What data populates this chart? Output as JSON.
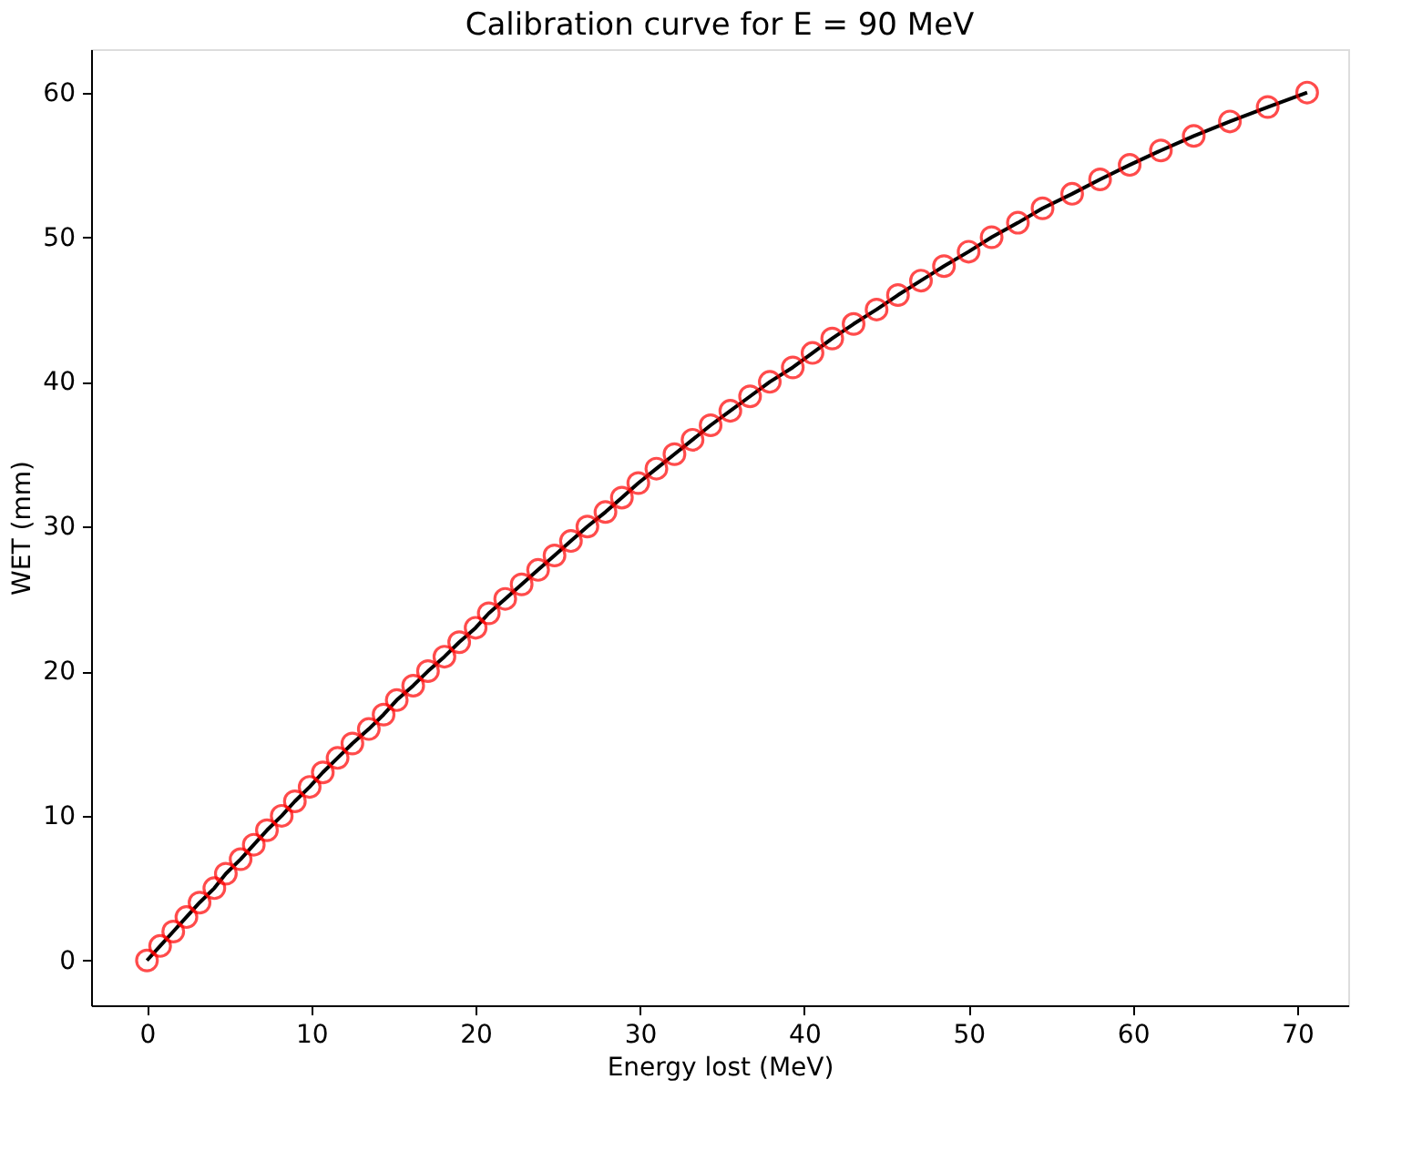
{
  "chart_data": {
    "type": "line",
    "title": "Calibration curve for E = 90 MeV",
    "xlabel": "Energy lost (MeV)",
    "ylabel": "WET (mm)",
    "x": [
      0,
      0.8,
      1.6,
      2.4,
      3.2,
      4.1,
      4.8,
      5.7,
      6.5,
      7.3,
      8.2,
      9.0,
      9.9,
      10.7,
      11.6,
      12.5,
      13.5,
      14.4,
      15.2,
      16.2,
      17.1,
      18.1,
      19.0,
      20.0,
      20.8,
      21.8,
      22.8,
      23.8,
      24.8,
      25.8,
      26.8,
      27.9,
      28.9,
      29.9,
      31.0,
      32.1,
      33.2,
      34.3,
      35.5,
      36.7,
      37.9,
      39.3,
      40.5,
      41.7,
      43.0,
      44.4,
      45.7,
      47.1,
      48.5,
      50.0,
      51.4,
      53.0,
      54.5,
      56.3,
      58.0,
      59.8,
      61.7,
      63.7,
      65.9,
      68.2,
      70.6
    ],
    "series": [
      {
        "color": "#000000",
        "marker": "none",
        "line_style": "solid",
        "values": [
          0,
          1,
          2,
          3,
          4,
          5,
          6,
          7,
          8,
          9,
          10,
          11,
          12,
          13,
          14,
          15,
          16,
          17,
          18,
          19,
          20,
          21,
          22,
          23,
          24,
          25,
          26,
          27,
          28,
          29,
          30,
          31,
          32,
          33,
          34,
          35,
          36,
          37,
          38,
          39,
          40,
          41,
          42,
          43,
          44,
          45,
          46,
          47,
          48,
          49,
          50,
          51,
          52,
          53,
          54,
          55,
          56,
          57,
          58,
          59,
          60
        ]
      },
      {
        "type": "scatter",
        "color": "#ff0000",
        "marker": "circle",
        "values": [
          0,
          1,
          2,
          3,
          4,
          5,
          6,
          7,
          8,
          9,
          10,
          11,
          12,
          13,
          14,
          15,
          16,
          17,
          18,
          19,
          20,
          21,
          22,
          23,
          24,
          25,
          26,
          27,
          28,
          29,
          30,
          31,
          32,
          33,
          34,
          35,
          36,
          37,
          38,
          39,
          40,
          41,
          42,
          43,
          44,
          45,
          46,
          47,
          48,
          49,
          50,
          51,
          52,
          53,
          54,
          55,
          56,
          57,
          58,
          59,
          60
        ]
      }
    ],
    "xlim": [
      -3.4,
      73.1
    ],
    "ylim": [
      -3.1,
      63.0
    ],
    "xticks": [
      0,
      10,
      20,
      30,
      40,
      50,
      60,
      70
    ],
    "yticks": [
      0,
      10,
      20,
      30,
      40,
      50,
      60
    ]
  }
}
